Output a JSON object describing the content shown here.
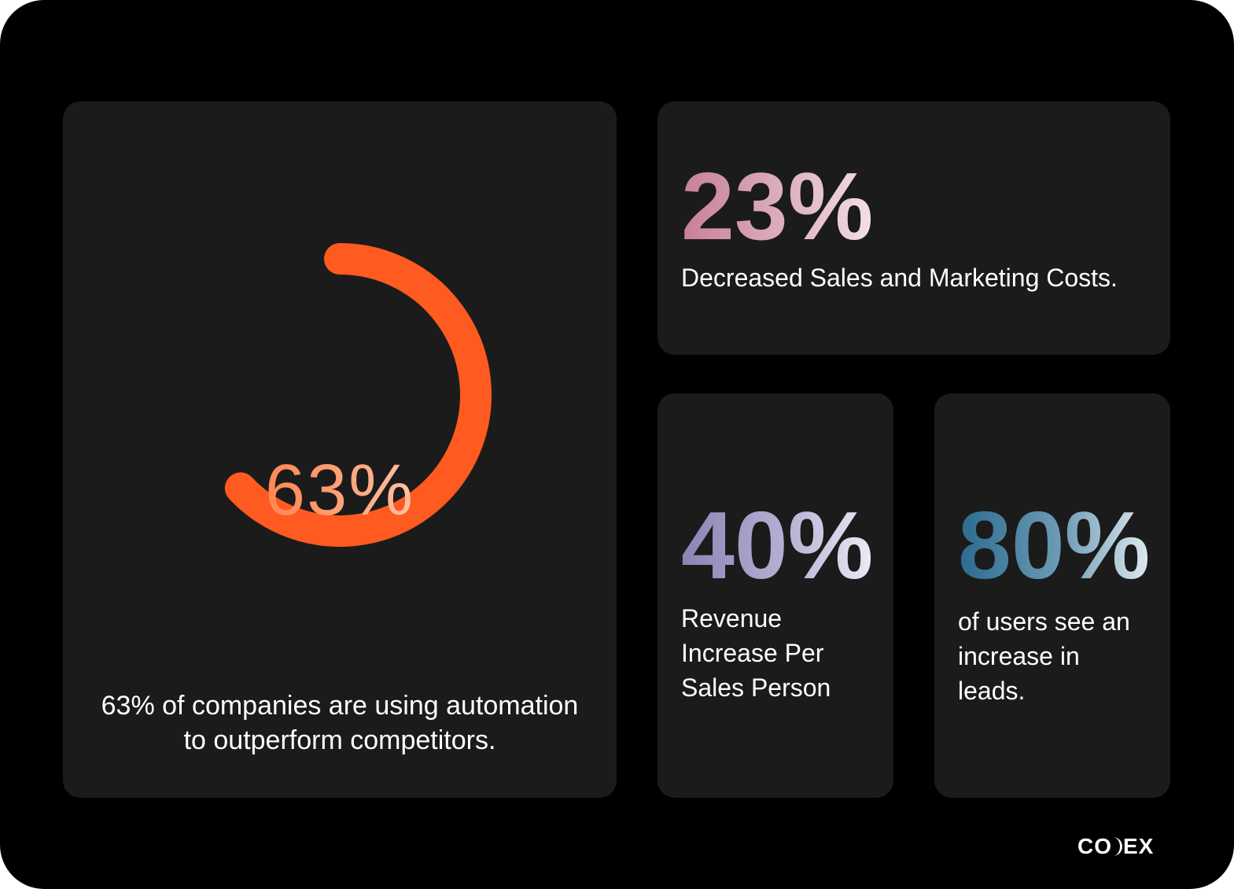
{
  "chart_data": [
    {
      "type": "gauge",
      "value": 63,
      "max": 100,
      "value_label": "63%",
      "caption_lines": [
        "63% of companies are using  automation",
        "to outperform competitors."
      ],
      "color": "#ff5a1f"
    },
    {
      "type": "stat",
      "value": 23,
      "value_label": "23%",
      "description_lines": [
        "Decreased Sales and Marketing Costs."
      ],
      "color": "#d08ea4"
    },
    {
      "type": "stat",
      "value": 40,
      "value_label": "40%",
      "description_lines": [
        "Revenue",
        "Increase Per",
        "Sales Person"
      ],
      "color": "#a29bc6"
    },
    {
      "type": "stat",
      "value": 80,
      "value_label": "80%",
      "description_lines": [
        "of users see an",
        "increase in",
        "leads."
      ],
      "color": "#3b7697"
    }
  ],
  "brand": {
    "logo_left": "CO",
    "logo_mark": "crescent-icon",
    "logo_right": "EX"
  },
  "colors": {
    "background": "#000000",
    "card": "#1b1b1b",
    "text": "#ffffff"
  }
}
